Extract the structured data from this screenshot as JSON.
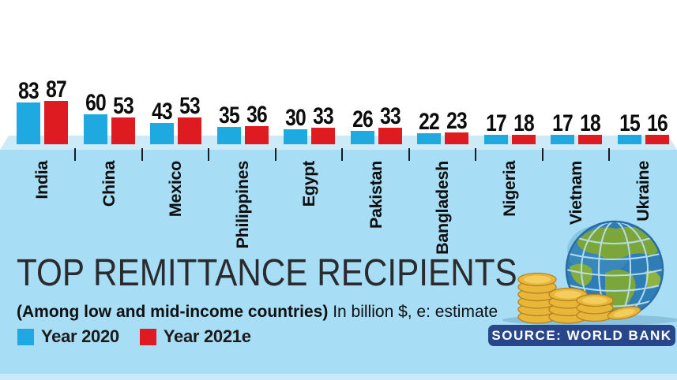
{
  "infographic": {
    "title": "TOP REMITTANCE RECIPIENTS",
    "subtitle_bold": "(Among low and mid-income countries)",
    "subtitle_rest": " In billion $, e: estimate",
    "source": "SOURCE: WORLD BANK"
  },
  "legend": [
    {
      "label": "Year 2020",
      "color": "#1ea9e1"
    },
    {
      "label": "Year 2021e",
      "color": "#de1b21"
    }
  ],
  "chart_data": {
    "type": "bar",
    "title": "TOP REMITTANCE RECIPIENTS",
    "subtitle": "(Among low and mid-income countries) In billion $, e: estimate",
    "unit": "billion $",
    "note": "e: estimate",
    "categories": [
      "India",
      "China",
      "Mexico",
      "Philippines",
      "Egypt",
      "Pakistan",
      "Bangladesh",
      "Nigeria",
      "Vietnam",
      "Ukraine"
    ],
    "series": [
      {
        "name": "Year 2020",
        "color": "#1ea9e1",
        "values": [
          83,
          60,
          43,
          35,
          30,
          26,
          22,
          17,
          17,
          15
        ]
      },
      {
        "name": "Year 2021e",
        "color": "#de1b21",
        "values": [
          87,
          53,
          53,
          36,
          33,
          33,
          23,
          18,
          18,
          16
        ]
      }
    ],
    "value_labels": true,
    "axes": "none",
    "legend_position": "bottom-left",
    "source": "SOURCE: WORLD BANK"
  },
  "icons": {
    "illustration": "globe-with-coin-stacks",
    "globe": "globe-icon",
    "coins": "coin-stacks-icon"
  },
  "colors": {
    "page-top": "#ffffff",
    "bg-main": "#a7def6",
    "strip": "#cdeaf9",
    "strip-bottom": "#c9e9f9",
    "badge": "#27478a",
    "ink": "#0c0c0c",
    "title-ink": "#2b2b2e"
  }
}
